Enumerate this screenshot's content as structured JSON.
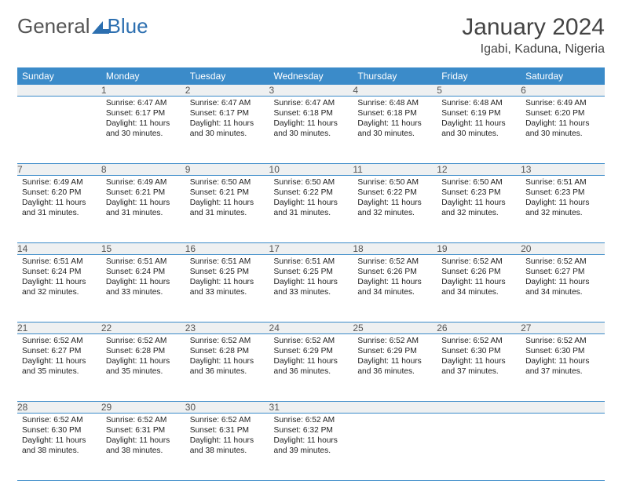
{
  "brand": {
    "part1": "General",
    "part2": "Blue"
  },
  "title": "January 2024",
  "location": "Igabi, Kaduna, Nigeria",
  "colors": {
    "header_bg": "#3b8bc9",
    "header_text": "#ffffff",
    "daynum_bg": "#eef0f1",
    "rule": "#3b8bc9",
    "text": "#222222",
    "title_text": "#444444",
    "logo_gray": "#555555",
    "logo_blue": "#2c6fb0"
  },
  "typography": {
    "title_fontsize": 30,
    "location_fontsize": 16,
    "header_fontsize": 12,
    "daynum_fontsize": 12,
    "cell_fontsize": 10.2
  },
  "weekdays": [
    "Sunday",
    "Monday",
    "Tuesday",
    "Wednesday",
    "Thursday",
    "Friday",
    "Saturday"
  ],
  "weeks": [
    {
      "nums": [
        "",
        "1",
        "2",
        "3",
        "4",
        "5",
        "6"
      ],
      "cells": [
        {},
        {
          "sunrise": "6:47 AM",
          "sunset": "6:17 PM",
          "daylight": "11 hours and 30 minutes."
        },
        {
          "sunrise": "6:47 AM",
          "sunset": "6:17 PM",
          "daylight": "11 hours and 30 minutes."
        },
        {
          "sunrise": "6:47 AM",
          "sunset": "6:18 PM",
          "daylight": "11 hours and 30 minutes."
        },
        {
          "sunrise": "6:48 AM",
          "sunset": "6:18 PM",
          "daylight": "11 hours and 30 minutes."
        },
        {
          "sunrise": "6:48 AM",
          "sunset": "6:19 PM",
          "daylight": "11 hours and 30 minutes."
        },
        {
          "sunrise": "6:49 AM",
          "sunset": "6:20 PM",
          "daylight": "11 hours and 30 minutes."
        }
      ]
    },
    {
      "nums": [
        "7",
        "8",
        "9",
        "10",
        "11",
        "12",
        "13"
      ],
      "cells": [
        {
          "sunrise": "6:49 AM",
          "sunset": "6:20 PM",
          "daylight": "11 hours and 31 minutes."
        },
        {
          "sunrise": "6:49 AM",
          "sunset": "6:21 PM",
          "daylight": "11 hours and 31 minutes."
        },
        {
          "sunrise": "6:50 AM",
          "sunset": "6:21 PM",
          "daylight": "11 hours and 31 minutes."
        },
        {
          "sunrise": "6:50 AM",
          "sunset": "6:22 PM",
          "daylight": "11 hours and 31 minutes."
        },
        {
          "sunrise": "6:50 AM",
          "sunset": "6:22 PM",
          "daylight": "11 hours and 32 minutes."
        },
        {
          "sunrise": "6:50 AM",
          "sunset": "6:23 PM",
          "daylight": "11 hours and 32 minutes."
        },
        {
          "sunrise": "6:51 AM",
          "sunset": "6:23 PM",
          "daylight": "11 hours and 32 minutes."
        }
      ]
    },
    {
      "nums": [
        "14",
        "15",
        "16",
        "17",
        "18",
        "19",
        "20"
      ],
      "cells": [
        {
          "sunrise": "6:51 AM",
          "sunset": "6:24 PM",
          "daylight": "11 hours and 32 minutes."
        },
        {
          "sunrise": "6:51 AM",
          "sunset": "6:24 PM",
          "daylight": "11 hours and 33 minutes."
        },
        {
          "sunrise": "6:51 AM",
          "sunset": "6:25 PM",
          "daylight": "11 hours and 33 minutes."
        },
        {
          "sunrise": "6:51 AM",
          "sunset": "6:25 PM",
          "daylight": "11 hours and 33 minutes."
        },
        {
          "sunrise": "6:52 AM",
          "sunset": "6:26 PM",
          "daylight": "11 hours and 34 minutes."
        },
        {
          "sunrise": "6:52 AM",
          "sunset": "6:26 PM",
          "daylight": "11 hours and 34 minutes."
        },
        {
          "sunrise": "6:52 AM",
          "sunset": "6:27 PM",
          "daylight": "11 hours and 34 minutes."
        }
      ]
    },
    {
      "nums": [
        "21",
        "22",
        "23",
        "24",
        "25",
        "26",
        "27"
      ],
      "cells": [
        {
          "sunrise": "6:52 AM",
          "sunset": "6:27 PM",
          "daylight": "11 hours and 35 minutes."
        },
        {
          "sunrise": "6:52 AM",
          "sunset": "6:28 PM",
          "daylight": "11 hours and 35 minutes."
        },
        {
          "sunrise": "6:52 AM",
          "sunset": "6:28 PM",
          "daylight": "11 hours and 36 minutes."
        },
        {
          "sunrise": "6:52 AM",
          "sunset": "6:29 PM",
          "daylight": "11 hours and 36 minutes."
        },
        {
          "sunrise": "6:52 AM",
          "sunset": "6:29 PM",
          "daylight": "11 hours and 36 minutes."
        },
        {
          "sunrise": "6:52 AM",
          "sunset": "6:30 PM",
          "daylight": "11 hours and 37 minutes."
        },
        {
          "sunrise": "6:52 AM",
          "sunset": "6:30 PM",
          "daylight": "11 hours and 37 minutes."
        }
      ]
    },
    {
      "nums": [
        "28",
        "29",
        "30",
        "31",
        "",
        "",
        ""
      ],
      "cells": [
        {
          "sunrise": "6:52 AM",
          "sunset": "6:30 PM",
          "daylight": "11 hours and 38 minutes."
        },
        {
          "sunrise": "6:52 AM",
          "sunset": "6:31 PM",
          "daylight": "11 hours and 38 minutes."
        },
        {
          "sunrise": "6:52 AM",
          "sunset": "6:31 PM",
          "daylight": "11 hours and 38 minutes."
        },
        {
          "sunrise": "6:52 AM",
          "sunset": "6:32 PM",
          "daylight": "11 hours and 39 minutes."
        },
        {},
        {},
        {}
      ]
    }
  ],
  "labels": {
    "sunrise": "Sunrise:",
    "sunset": "Sunset:",
    "daylight": "Daylight:"
  }
}
